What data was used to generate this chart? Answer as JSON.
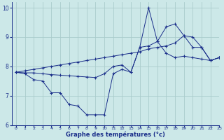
{
  "title": "Graphe des températures (°c)",
  "bg_color": "#cce8e8",
  "grid_color": "#aacccc",
  "line_color": "#1a2e8a",
  "xlim": [
    -0.5,
    23
  ],
  "ylim": [
    6,
    10.2
  ],
  "xticks": [
    0,
    1,
    2,
    3,
    4,
    5,
    6,
    7,
    8,
    9,
    10,
    11,
    12,
    13,
    14,
    15,
    16,
    17,
    18,
    19,
    20,
    21,
    22,
    23
  ],
  "yticks": [
    6,
    7,
    8,
    9,
    10
  ],
  "line1_x": [
    0,
    1,
    2,
    3,
    4,
    5,
    6,
    7,
    8,
    9,
    10,
    11,
    12,
    13,
    14,
    15,
    16,
    17,
    18,
    19,
    20,
    21,
    22,
    23
  ],
  "line1_y": [
    7.8,
    7.75,
    7.55,
    7.5,
    7.1,
    7.1,
    6.7,
    6.65,
    6.35,
    6.35,
    6.35,
    7.75,
    7.9,
    7.8,
    8.65,
    8.7,
    8.85,
    8.45,
    8.3,
    8.35,
    8.3,
    8.25,
    8.2,
    8.3
  ],
  "line2_x": [
    0,
    1,
    2,
    3,
    4,
    5,
    6,
    7,
    8,
    9,
    10,
    11,
    12,
    13,
    14,
    15,
    16,
    17,
    18,
    19,
    20,
    21,
    22,
    23
  ],
  "line2_y": [
    7.8,
    7.78,
    7.78,
    7.75,
    7.72,
    7.7,
    7.68,
    7.66,
    7.64,
    7.62,
    7.75,
    8.0,
    8.05,
    7.8,
    8.65,
    10.0,
    8.85,
    9.35,
    9.45,
    9.05,
    8.65,
    8.65,
    8.2,
    8.3
  ],
  "line3_x": [
    0,
    1,
    2,
    3,
    4,
    5,
    6,
    7,
    8,
    9,
    10,
    11,
    12,
    13,
    14,
    15,
    16,
    17,
    18,
    19,
    20,
    21,
    22,
    23
  ],
  "line3_y": [
    7.8,
    7.85,
    7.9,
    7.95,
    8.0,
    8.05,
    8.1,
    8.15,
    8.2,
    8.25,
    8.3,
    8.35,
    8.4,
    8.45,
    8.5,
    8.6,
    8.65,
    8.7,
    8.8,
    9.05,
    9.0,
    8.65,
    8.2,
    8.3
  ]
}
